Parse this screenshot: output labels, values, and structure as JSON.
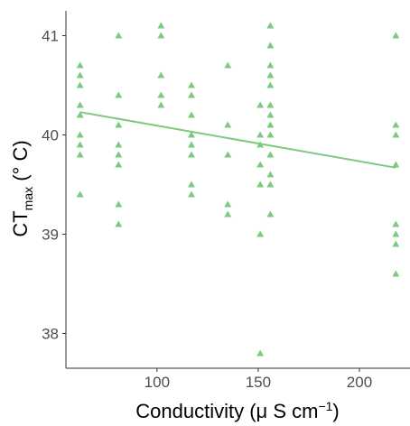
{
  "chart_data": {
    "type": "scatter",
    "xlabel": {
      "pre": "Conductivity (μ S cm",
      "sup": "−1",
      "post": ")"
    },
    "ylabel": {
      "pre": "CT",
      "sub": "max",
      "post": " (° C)"
    },
    "xlim": [
      55,
      225
    ],
    "ylim": [
      37.65,
      41.25
    ],
    "xticks": [
      100,
      150,
      200
    ],
    "xtick_labels": [
      "100",
      "150",
      "200"
    ],
    "yticks": [
      38,
      39,
      40,
      41
    ],
    "ytick_labels": [
      "38",
      "39",
      "40",
      "41"
    ],
    "grid": false,
    "legend": "none",
    "marker": "triangle",
    "color": "#7fc97f",
    "points": [
      {
        "x": 62,
        "y": 40.7
      },
      {
        "x": 62,
        "y": 40.6
      },
      {
        "x": 62,
        "y": 40.5
      },
      {
        "x": 62,
        "y": 40.3
      },
      {
        "x": 62,
        "y": 40.2
      },
      {
        "x": 62,
        "y": 40.0
      },
      {
        "x": 62,
        "y": 39.9
      },
      {
        "x": 62,
        "y": 39.8
      },
      {
        "x": 62,
        "y": 39.4
      },
      {
        "x": 81,
        "y": 41.0
      },
      {
        "x": 81,
        "y": 40.4
      },
      {
        "x": 81,
        "y": 40.1
      },
      {
        "x": 81,
        "y": 39.9
      },
      {
        "x": 81,
        "y": 39.8
      },
      {
        "x": 81,
        "y": 39.7
      },
      {
        "x": 81,
        "y": 39.3
      },
      {
        "x": 81,
        "y": 39.1
      },
      {
        "x": 102,
        "y": 41.1
      },
      {
        "x": 102,
        "y": 41.0
      },
      {
        "x": 102,
        "y": 40.6
      },
      {
        "x": 102,
        "y": 40.4
      },
      {
        "x": 102,
        "y": 40.3
      },
      {
        "x": 117,
        "y": 40.5
      },
      {
        "x": 117,
        "y": 40.4
      },
      {
        "x": 117,
        "y": 40.2
      },
      {
        "x": 117,
        "y": 40.0
      },
      {
        "x": 117,
        "y": 39.9
      },
      {
        "x": 117,
        "y": 39.8
      },
      {
        "x": 117,
        "y": 39.5
      },
      {
        "x": 117,
        "y": 39.4
      },
      {
        "x": 135,
        "y": 40.7
      },
      {
        "x": 135,
        "y": 40.1
      },
      {
        "x": 135,
        "y": 39.8
      },
      {
        "x": 135,
        "y": 39.3
      },
      {
        "x": 135,
        "y": 39.2
      },
      {
        "x": 151,
        "y": 40.3
      },
      {
        "x": 151,
        "y": 40.0
      },
      {
        "x": 151,
        "y": 39.9
      },
      {
        "x": 151,
        "y": 39.7
      },
      {
        "x": 151,
        "y": 39.5
      },
      {
        "x": 151,
        "y": 39.0
      },
      {
        "x": 151,
        "y": 37.8
      },
      {
        "x": 156,
        "y": 41.1
      },
      {
        "x": 156,
        "y": 40.9
      },
      {
        "x": 156,
        "y": 40.7
      },
      {
        "x": 156,
        "y": 40.6
      },
      {
        "x": 156,
        "y": 40.5
      },
      {
        "x": 156,
        "y": 40.3
      },
      {
        "x": 156,
        "y": 40.2
      },
      {
        "x": 156,
        "y": 40.1
      },
      {
        "x": 156,
        "y": 40.0
      },
      {
        "x": 156,
        "y": 39.8
      },
      {
        "x": 156,
        "y": 39.6
      },
      {
        "x": 156,
        "y": 39.5
      },
      {
        "x": 156,
        "y": 39.2
      },
      {
        "x": 218,
        "y": 41.0
      },
      {
        "x": 218,
        "y": 40.1
      },
      {
        "x": 218,
        "y": 40.0
      },
      {
        "x": 218,
        "y": 39.7
      },
      {
        "x": 218,
        "y": 39.1
      },
      {
        "x": 218,
        "y": 39.0
      },
      {
        "x": 218,
        "y": 38.9
      },
      {
        "x": 218,
        "y": 38.6
      }
    ],
    "fit_line": {
      "x": [
        62,
        218
      ],
      "y": [
        40.23,
        39.67
      ]
    }
  }
}
